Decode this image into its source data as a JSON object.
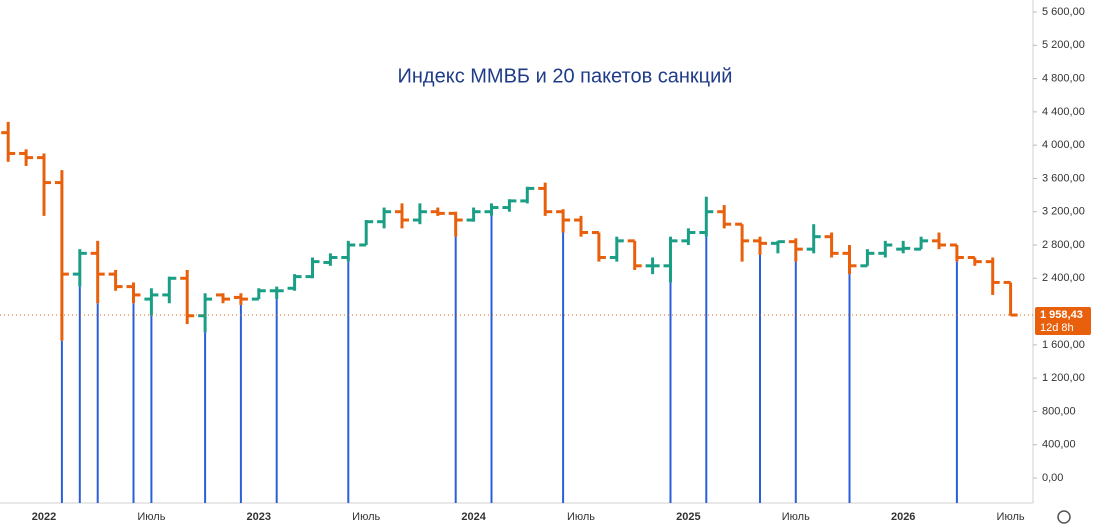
{
  "chart_data": {
    "type": "ohlc",
    "title": "Индекс ММВБ и 20 пакетов санкций",
    "categories": [
      null,
      null,
      "2022",
      null,
      null,
      null,
      null,
      null,
      "Июль",
      null,
      null,
      null,
      null,
      null,
      "2023",
      null,
      null,
      null,
      null,
      null,
      "Июль",
      null,
      null,
      null,
      null,
      null,
      "2024",
      null,
      null,
      null,
      null,
      null,
      "Июль",
      null,
      null,
      null,
      null,
      null,
      "2025",
      null,
      null,
      null,
      null,
      null,
      "Июль",
      null,
      null,
      null,
      null,
      null,
      "2026",
      null,
      null,
      null,
      null,
      null,
      "Июль"
    ],
    "open": [
      4150,
      3900,
      3850,
      3550,
      2450,
      2700,
      2450,
      2300,
      2150,
      2200,
      2400,
      1950,
      2200,
      2170,
      2150,
      2250,
      2280,
      2420,
      2590,
      2650,
      2800,
      3080,
      3200,
      3100,
      3200,
      3180,
      3100,
      3200,
      3250,
      3330,
      3480,
      3200,
      3100,
      2950,
      2650,
      2850,
      2550,
      2550,
      2850,
      2950,
      3200,
      3050,
      2850,
      2820,
      2840,
      2750,
      2900,
      2700,
      2550,
      2700,
      2750,
      2750,
      2850,
      2800,
      2650,
      2600,
      2350
    ],
    "high": [
      4280,
      3950,
      3900,
      3700,
      2750,
      2850,
      2500,
      2350,
      2280,
      2420,
      2500,
      2220,
      2220,
      2220,
      2280,
      2300,
      2450,
      2650,
      2700,
      2850,
      3100,
      3250,
      3300,
      3300,
      3250,
      3200,
      3250,
      3300,
      3350,
      3500,
      3550,
      3230,
      3150,
      2950,
      2900,
      2850,
      2650,
      2900,
      3000,
      3380,
      3280,
      3050,
      2900,
      2850,
      2880,
      3050,
      2950,
      2800,
      2750,
      2850,
      2850,
      2900,
      2950,
      2800,
      2650,
      2650,
      2350
    ],
    "low": [
      3800,
      3750,
      3150,
      1650,
      2300,
      2100,
      2250,
      2100,
      1950,
      2100,
      1850,
      1750,
      2100,
      2080,
      2150,
      2150,
      2250,
      2400,
      2550,
      2600,
      2800,
      3000,
      3000,
      3050,
      3150,
      2900,
      3080,
      3150,
      3200,
      3300,
      3150,
      2950,
      2900,
      2600,
      2600,
      2500,
      2450,
      2350,
      2800,
      2900,
      3000,
      2600,
      2680,
      2700,
      2600,
      2700,
      2650,
      2450,
      2550,
      2650,
      2700,
      2750,
      2750,
      2600,
      2550,
      2200,
      1950
    ],
    "close": [
      3900,
      3850,
      3550,
      2450,
      2700,
      2450,
      2300,
      2200,
      2200,
      2400,
      1950,
      2150,
      2150,
      2150,
      2250,
      2250,
      2420,
      2600,
      2650,
      2800,
      3080,
      3200,
      3100,
      3200,
      3180,
      3100,
      3200,
      3250,
      3330,
      3480,
      3200,
      3100,
      2950,
      2650,
      2850,
      2550,
      2550,
      2850,
      2950,
      3200,
      3050,
      2850,
      2820,
      2840,
      2750,
      2900,
      2700,
      2550,
      2700,
      2800,
      2760,
      2850,
      2800,
      2650,
      2600,
      2350,
      1958.43
    ],
    "up_color": "#1a9e86",
    "down_color": "#e8600c",
    "events": [
      3,
      4,
      5,
      7,
      8,
      11,
      13,
      15,
      19,
      25,
      27,
      31,
      37,
      39,
      42,
      44,
      47,
      53
    ],
    "event_color": "#2b5fd9",
    "last_price_label": "1 958,43",
    "countdown": "12d 8h",
    "ylim": [
      0,
      5600
    ],
    "yticks": [
      {
        "value": 0,
        "label": "0,00"
      },
      {
        "value": 400,
        "label": "400,00"
      },
      {
        "value": 800,
        "label": "800,00"
      },
      {
        "value": 1200,
        "label": "1 200,00"
      },
      {
        "value": 1600,
        "label": "1 600,00"
      },
      {
        "value": 2400,
        "label": "2 400,00"
      },
      {
        "value": 2800,
        "label": "2 800,00"
      },
      {
        "value": 3200,
        "label": "3 200,00"
      },
      {
        "value": 3600,
        "label": "3 600,00"
      },
      {
        "value": 4000,
        "label": "4 000,00"
      },
      {
        "value": 4400,
        "label": "4 400,00"
      },
      {
        "value": 4800,
        "label": "4 800,00"
      },
      {
        "value": 5200,
        "label": "5 200,00"
      },
      {
        "value": 5600,
        "label": "5 600,00"
      }
    ]
  }
}
